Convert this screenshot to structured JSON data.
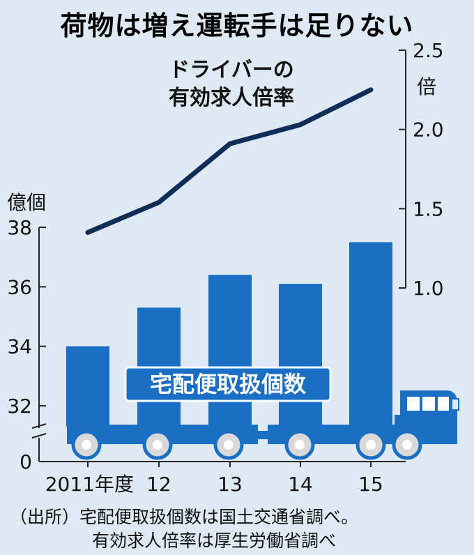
{
  "title": "荷物は増え運転手は足りない",
  "colors": {
    "background": "#dfe9f4",
    "bar": "#1a6fc4",
    "line": "#0f2d57",
    "label_bg": "#1a6fc4",
    "label_text": "#ffffff",
    "wheel": "#d9d9d9",
    "axis": "#222222"
  },
  "chart_data": {
    "type": "bar+line",
    "categories": [
      "2011年度",
      "12",
      "13",
      "14",
      "15"
    ],
    "left_axis": {
      "unit": "億個",
      "ticks": [
        "38",
        "36",
        "34",
        "32",
        "0"
      ],
      "range": [
        32,
        38
      ],
      "broken": true
    },
    "right_axis": {
      "unit": "倍",
      "ticks": [
        "2.5",
        "2.0",
        "1.5",
        "1.0"
      ],
      "range": [
        1.0,
        2.5
      ]
    },
    "series": [
      {
        "name": "宅配便取扱個数",
        "type": "bar",
        "axis": "left",
        "values": [
          34.0,
          35.3,
          36.4,
          36.1,
          37.5
        ]
      },
      {
        "name": "ドライバーの有効求人倍率",
        "type": "line",
        "axis": "right",
        "values": [
          1.35,
          1.54,
          1.91,
          2.03,
          2.25
        ]
      }
    ],
    "line_label": [
      "ドライバーの",
      "有効求人倍率"
    ],
    "bar_label": "宅配便取扱個数"
  },
  "source": {
    "line1": "（出所）宅配便取扱個数は国土交通省調べ。",
    "line2": "有効求人倍率は厚生労働省調べ"
  }
}
